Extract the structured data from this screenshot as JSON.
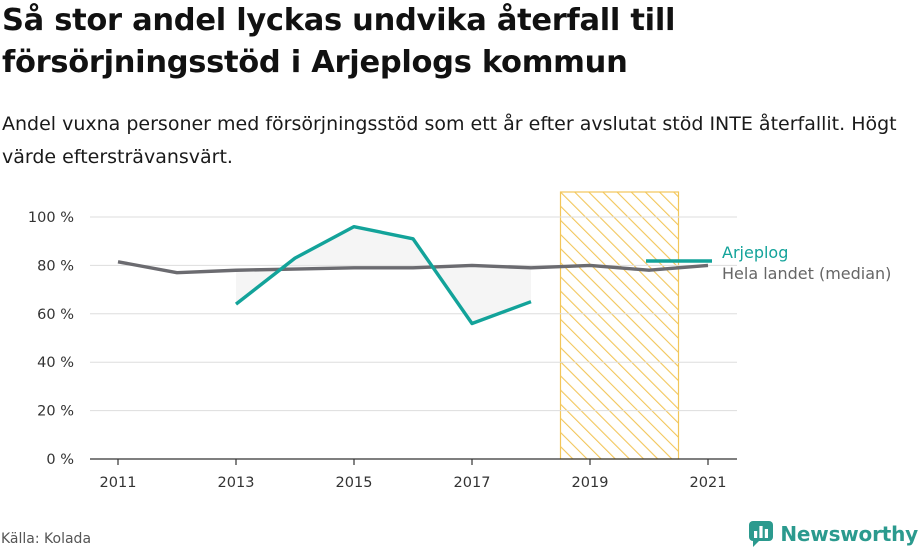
{
  "title": "Så stor andel lyckas undvika återfall till försörjningsstöd i Arjeplogs kommun",
  "subtitle": "Andel vuxna personer med försörjningsstöd som ett år efter avslutat stöd INTE återfallit. Högt värde eftersträvansvärt.",
  "source": "Källa: Kolada",
  "brand": "Newsworthy",
  "colors": {
    "accent": "#13a39a",
    "median": "#6b6b70",
    "forecast_fill": "#fbe3a4",
    "grid": "#dddddd"
  },
  "chart_data": {
    "type": "line",
    "x": [
      2011,
      2012,
      2013,
      2014,
      2015,
      2016,
      2017,
      2018,
      2019,
      2020,
      2021
    ],
    "xticks": [
      "2011",
      "2013",
      "2015",
      "2017",
      "2019",
      "2021"
    ],
    "yticks": [
      "0 %",
      "20 %",
      "40 %",
      "60 %",
      "80 %",
      "100 %"
    ],
    "ylim": [
      0,
      100
    ],
    "xlim": [
      2011,
      2021
    ],
    "grid": true,
    "legend_placement": "right",
    "highlight_range": [
      2018.5,
      2020.5
    ],
    "series": [
      {
        "name": "Arjeplog",
        "color": "#13a39a",
        "values": [
          null,
          null,
          64,
          83,
          96,
          91,
          56,
          65,
          null,
          null,
          null
        ]
      },
      {
        "name": "Hela landet (median)",
        "color": "#6b6b70",
        "values": [
          81.5,
          77,
          78,
          78.5,
          79,
          79,
          80,
          79,
          80,
          78,
          80
        ]
      }
    ]
  }
}
